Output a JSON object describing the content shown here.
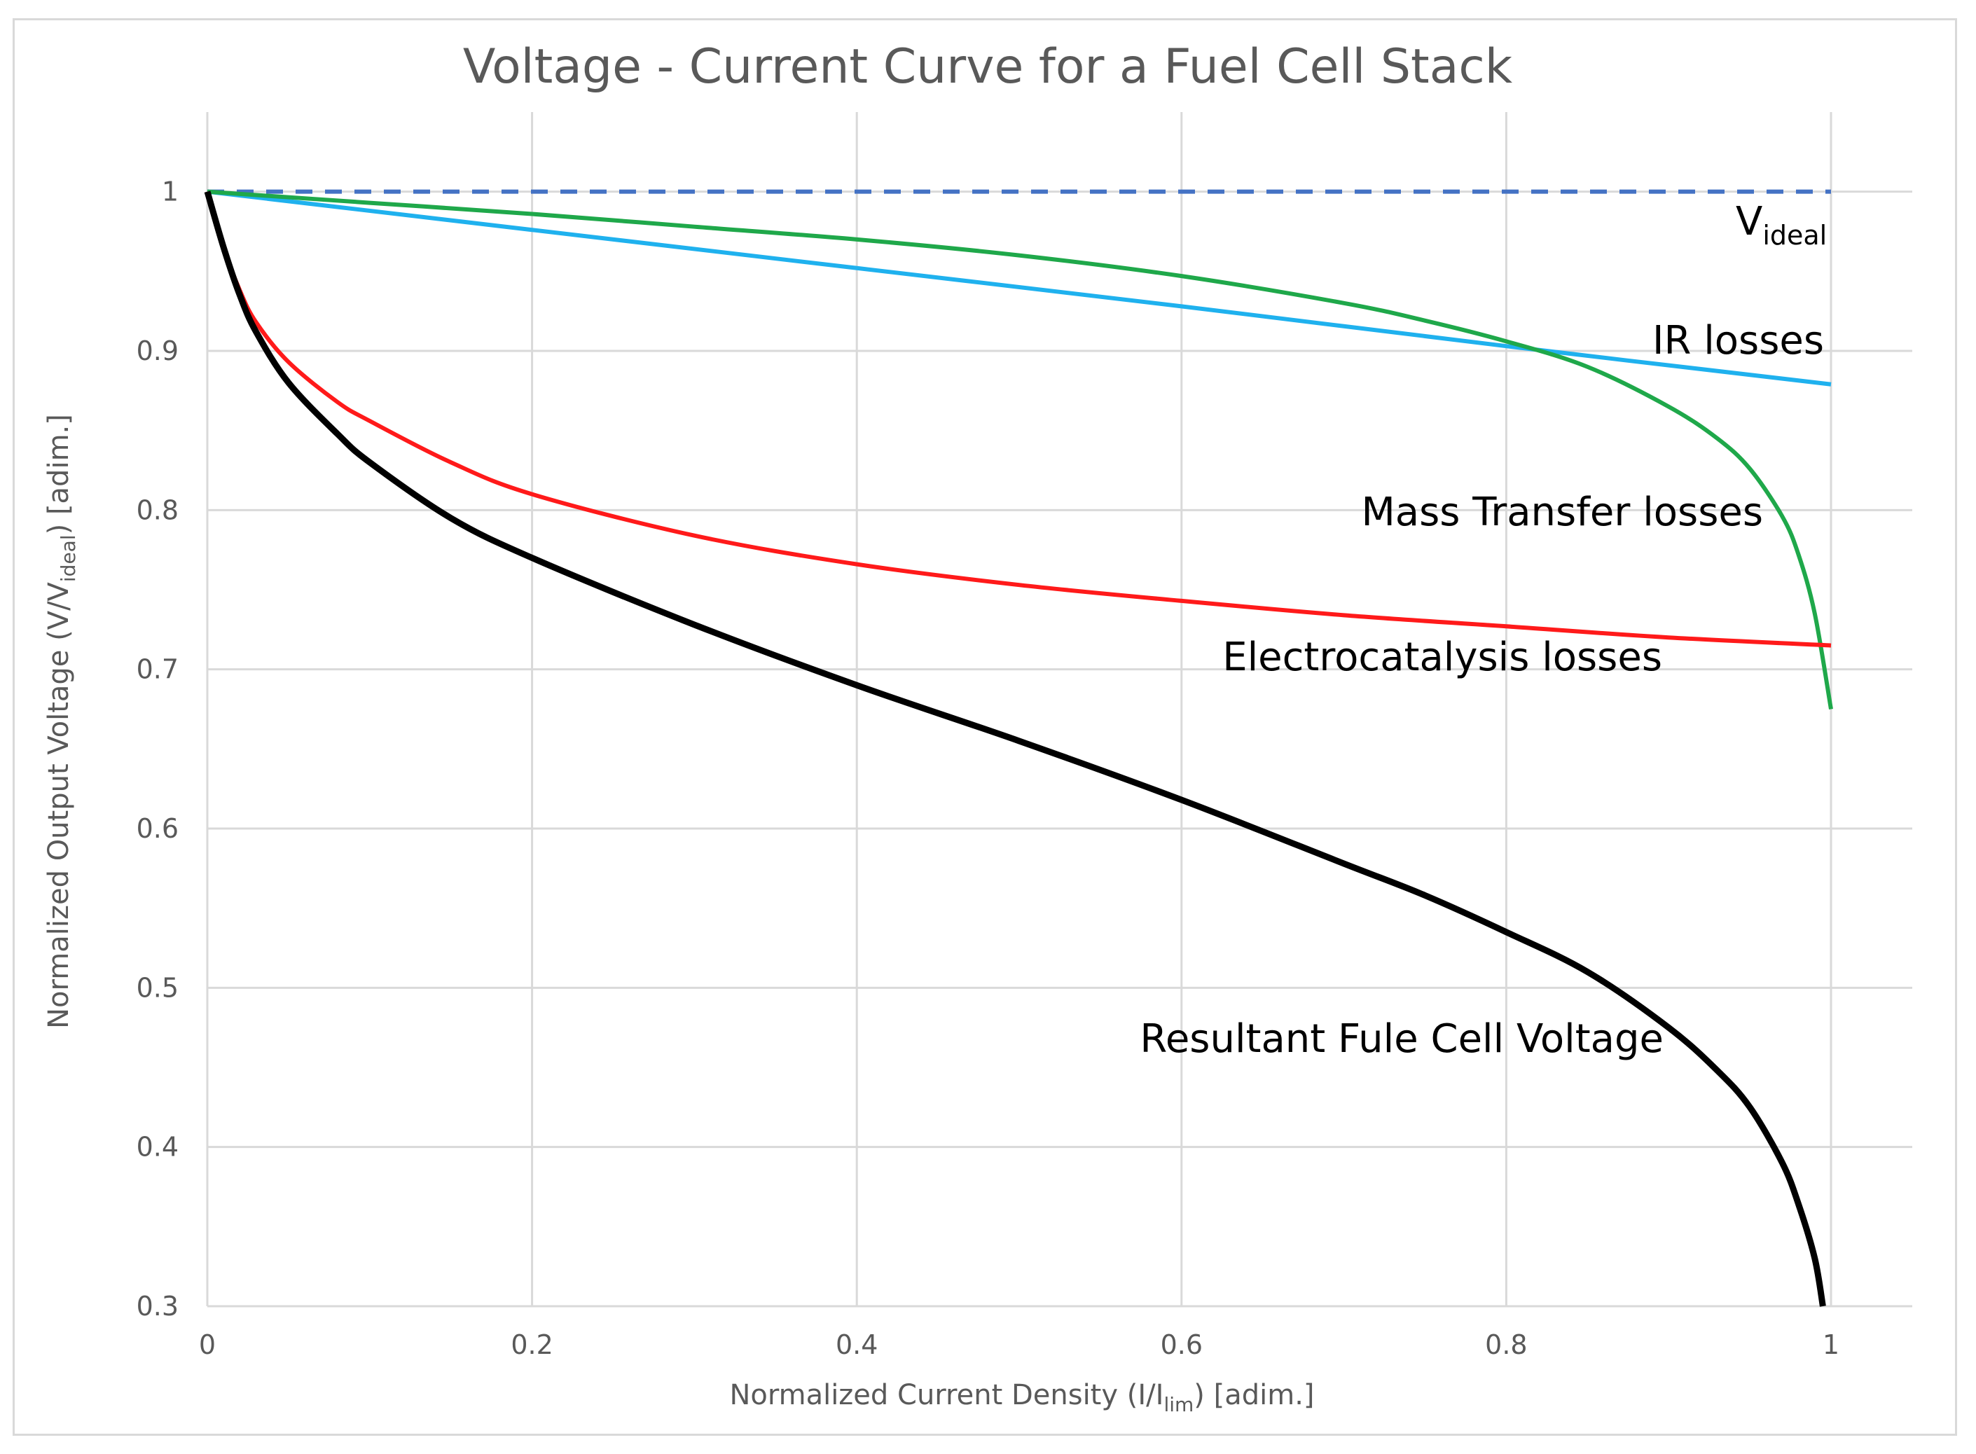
{
  "chart_data": {
    "type": "line",
    "title": "Voltage - Current Curve for a Fuel Cell  Stack",
    "xlabel": {
      "main": "Normalized Current Density (I/I",
      "sub": "lim",
      "tail": ") [adim.]"
    },
    "ylabel": {
      "main": "Normalized Output Voltage (V/V",
      "sub": "ideal",
      "tail": ")  [adim.]"
    },
    "xlim": [
      0,
      1
    ],
    "ylim": [
      0.3,
      1.05
    ],
    "x_ticks": [
      0,
      0.2,
      0.4,
      0.6,
      0.8,
      1
    ],
    "x_tick_labels": [
      "0",
      "0.2",
      "0.4",
      "0.6",
      "0.8",
      "1"
    ],
    "y_ticks": [
      0.3,
      0.4,
      0.5,
      0.6,
      0.7,
      0.8,
      0.9,
      1
    ],
    "y_tick_labels": [
      "0.3",
      "0.4",
      "0.5",
      "0.6",
      "0.7",
      "0.8",
      "0.9",
      "1"
    ],
    "grid": true,
    "legend": "none",
    "series": [
      {
        "name": "V_ideal",
        "color": "#4472c4",
        "style": "dashed",
        "x": [
          0,
          1
        ],
        "y": [
          1,
          1
        ]
      },
      {
        "name": "IR losses",
        "color": "#1fb1ee",
        "style": "solid",
        "x": [
          0,
          0.2,
          0.4,
          0.6,
          0.8,
          1.0
        ],
        "y": [
          1.0,
          0.976,
          0.952,
          0.928,
          0.903,
          0.879
        ]
      },
      {
        "name": "Mass Transfer losses",
        "color": "#1fa84a",
        "style": "solid",
        "x": [
          0,
          0.1,
          0.2,
          0.3,
          0.4,
          0.5,
          0.6,
          0.7,
          0.75,
          0.8,
          0.85,
          0.9,
          0.93,
          0.95,
          0.97,
          0.98,
          0.99,
          1.0
        ],
        "y": [
          1.0,
          0.993,
          0.986,
          0.978,
          0.97,
          0.96,
          0.947,
          0.93,
          0.919,
          0.906,
          0.89,
          0.865,
          0.845,
          0.826,
          0.796,
          0.772,
          0.735,
          0.675
        ]
      },
      {
        "name": "Electrocatalysis losses",
        "color": "#ff1a1a",
        "style": "solid",
        "x": [
          0,
          0.01,
          0.02,
          0.03,
          0.05,
          0.08,
          0.1,
          0.15,
          0.2,
          0.3,
          0.4,
          0.5,
          0.6,
          0.7,
          0.8,
          0.9,
          1.0
        ],
        "y": [
          1.0,
          0.965,
          0.938,
          0.918,
          0.893,
          0.868,
          0.856,
          0.83,
          0.81,
          0.784,
          0.766,
          0.753,
          0.743,
          0.734,
          0.727,
          0.72,
          0.715
        ]
      },
      {
        "name": "Resultant Fule Cell Voltage",
        "color": "#000000",
        "style": "solid",
        "x": [
          0,
          0.01,
          0.02,
          0.03,
          0.05,
          0.08,
          0.1,
          0.15,
          0.2,
          0.3,
          0.4,
          0.5,
          0.6,
          0.7,
          0.75,
          0.8,
          0.85,
          0.9,
          0.93,
          0.95,
          0.97,
          0.98,
          0.99,
          0.995
        ],
        "y": [
          1.0,
          0.965,
          0.935,
          0.912,
          0.88,
          0.848,
          0.83,
          0.795,
          0.77,
          0.728,
          0.69,
          0.655,
          0.618,
          0.578,
          0.558,
          0.535,
          0.51,
          0.475,
          0.448,
          0.425,
          0.39,
          0.364,
          0.33,
          0.3
        ]
      }
    ],
    "annotations": {
      "v_ideal": {
        "main": "V",
        "sub": "ideal"
      },
      "ir": "IR losses",
      "mass_transfer": "Mass Transfer losses",
      "electrocatalysis": "Electrocatalysis losses",
      "resultant": "Resultant Fule Cell Voltage"
    }
  }
}
